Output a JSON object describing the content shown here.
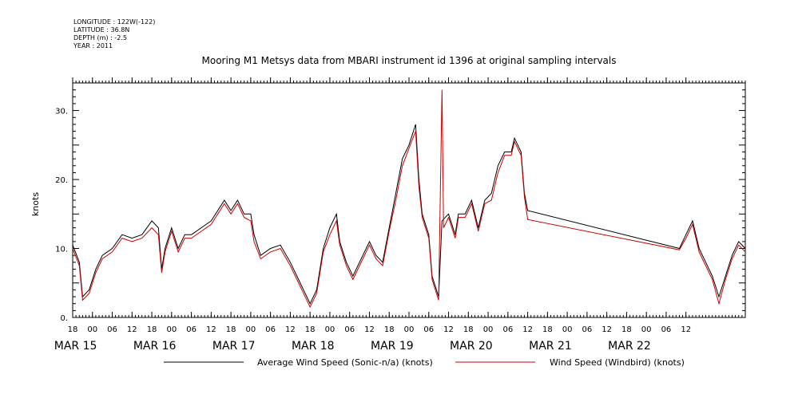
{
  "header": {
    "lines": [
      "LONGITUDE : 122W(-122)",
      "LATITUDE : 36.8N",
      "DEPTH (m) : -2.5",
      "YEAR : 2011"
    ]
  },
  "chart_data": {
    "type": "line",
    "title": "Mooring M1 Metsys data from MBARI instrument id 1396 at original sampling intervals",
    "ylabel": "knots",
    "xlabel": "",
    "ylim": [
      0,
      34
    ],
    "xlim_hours": [
      -6,
      198
    ],
    "x_unit": "hours since MAR 15 00:00, 2011",
    "yticks": [
      0,
      10,
      20,
      30
    ],
    "ytick_labels": [
      "0.",
      "10.",
      "20.",
      "30."
    ],
    "hour_ticks": [
      "18",
      "00",
      "06",
      "12",
      "18",
      "00",
      "06",
      "12",
      "18",
      "00",
      "06",
      "12",
      "18",
      "00",
      "06",
      "12",
      "18",
      "00",
      "06",
      "12",
      "18",
      "00",
      "06",
      "12",
      "18",
      "00",
      "06",
      "12",
      "18",
      "00",
      "06",
      "12"
    ],
    "day_labels": [
      "MAR 15",
      "MAR 16",
      "MAR 17",
      "MAR 18",
      "MAR 19",
      "MAR 20",
      "MAR 21",
      "MAR 22"
    ],
    "grid": false,
    "legend_position": "bottom",
    "series": [
      {
        "name": "Average Wind Speed (Sonic-n/a) (knots)",
        "color": "#000000",
        "points": [
          [
            -6,
            10.5
          ],
          [
            -4,
            8
          ],
          [
            -3,
            3
          ],
          [
            -1,
            4
          ],
          [
            1,
            7
          ],
          [
            3,
            9
          ],
          [
            6,
            10
          ],
          [
            9,
            12
          ],
          [
            12,
            11.5
          ],
          [
            15,
            12
          ],
          [
            18,
            14
          ],
          [
            20,
            13
          ],
          [
            21,
            7
          ],
          [
            22,
            10
          ],
          [
            24,
            13
          ],
          [
            26,
            10
          ],
          [
            28,
            12
          ],
          [
            30,
            12
          ],
          [
            33,
            13
          ],
          [
            36,
            14
          ],
          [
            40,
            17
          ],
          [
            42,
            15.5
          ],
          [
            44,
            17
          ],
          [
            46,
            15
          ],
          [
            48,
            15
          ],
          [
            49,
            12
          ],
          [
            51,
            9
          ],
          [
            54,
            10
          ],
          [
            57,
            10.5
          ],
          [
            60,
            8
          ],
          [
            62,
            6
          ],
          [
            64,
            4
          ],
          [
            66,
            2
          ],
          [
            68,
            4
          ],
          [
            70,
            10
          ],
          [
            72,
            13
          ],
          [
            74,
            15
          ],
          [
            75,
            11
          ],
          [
            77,
            8
          ],
          [
            79,
            6
          ],
          [
            82,
            9
          ],
          [
            84,
            11
          ],
          [
            86,
            9
          ],
          [
            88,
            8
          ],
          [
            90,
            13
          ],
          [
            92,
            18
          ],
          [
            94,
            23
          ],
          [
            96,
            25
          ],
          [
            98,
            28
          ],
          [
            99,
            20
          ],
          [
            100,
            15
          ],
          [
            102,
            12
          ],
          [
            103,
            6
          ],
          [
            105,
            3
          ],
          [
            106,
            14
          ],
          [
            108,
            15
          ],
          [
            110,
            12
          ],
          [
            111,
            15
          ],
          [
            113,
            15
          ],
          [
            115,
            17
          ],
          [
            117,
            13
          ],
          [
            119,
            17
          ],
          [
            121,
            18
          ],
          [
            123,
            22
          ],
          [
            125,
            24
          ],
          [
            127,
            24
          ],
          [
            128,
            26
          ],
          [
            130,
            24
          ],
          [
            131,
            18
          ],
          [
            132,
            15.5
          ],
          [
            178,
            10
          ],
          [
            180,
            12
          ],
          [
            182,
            14
          ],
          [
            184,
            10
          ],
          [
            186,
            8
          ],
          [
            188,
            6
          ],
          [
            190,
            3
          ],
          [
            192,
            6
          ],
          [
            194,
            9
          ],
          [
            196,
            11
          ],
          [
            198,
            10
          ]
        ]
      },
      {
        "name": "Wind Speed (Windbird) (knots)",
        "color": "#cc0000",
        "points": [
          [
            -6,
            10
          ],
          [
            -4,
            7.5
          ],
          [
            -3,
            2.5
          ],
          [
            -1,
            3.5
          ],
          [
            1,
            6.5
          ],
          [
            3,
            8.5
          ],
          [
            6,
            9.5
          ],
          [
            9,
            11.5
          ],
          [
            12,
            11
          ],
          [
            15,
            11.5
          ],
          [
            18,
            13
          ],
          [
            20,
            12
          ],
          [
            21,
            6.5
          ],
          [
            22,
            9.5
          ],
          [
            24,
            12.5
          ],
          [
            26,
            9.5
          ],
          [
            28,
            11.5
          ],
          [
            30,
            11.5
          ],
          [
            33,
            12.5
          ],
          [
            36,
            13.5
          ],
          [
            40,
            16.5
          ],
          [
            42,
            15
          ],
          [
            44,
            16.5
          ],
          [
            46,
            14.5
          ],
          [
            48,
            14
          ],
          [
            49,
            11
          ],
          [
            51,
            8.5
          ],
          [
            54,
            9.5
          ],
          [
            57,
            10
          ],
          [
            60,
            7.5
          ],
          [
            62,
            5.5
          ],
          [
            64,
            3.5
          ],
          [
            66,
            1.5
          ],
          [
            68,
            3.5
          ],
          [
            70,
            9.5
          ],
          [
            72,
            12
          ],
          [
            74,
            14
          ],
          [
            75,
            10.5
          ],
          [
            77,
            7.5
          ],
          [
            79,
            5.5
          ],
          [
            82,
            8.5
          ],
          [
            84,
            10.5
          ],
          [
            86,
            8.5
          ],
          [
            88,
            7.5
          ],
          [
            90,
            12.5
          ],
          [
            92,
            17
          ],
          [
            94,
            22
          ],
          [
            96,
            24.5
          ],
          [
            98,
            27
          ],
          [
            99,
            19
          ],
          [
            100,
            14.5
          ],
          [
            102,
            11.5
          ],
          [
            103,
            5.5
          ],
          [
            105,
            2.5
          ],
          [
            106,
            33
          ],
          [
            106.5,
            13
          ],
          [
            108,
            14.5
          ],
          [
            110,
            11.5
          ],
          [
            111,
            14.5
          ],
          [
            113,
            14.5
          ],
          [
            115,
            16.5
          ],
          [
            117,
            12.5
          ],
          [
            119,
            16.5
          ],
          [
            121,
            17
          ],
          [
            123,
            21
          ],
          [
            125,
            23.5
          ],
          [
            127,
            23.5
          ],
          [
            128,
            25.5
          ],
          [
            130,
            23.5
          ],
          [
            131,
            17.5
          ],
          [
            132,
            14.2
          ],
          [
            178,
            9.8
          ],
          [
            180,
            11.5
          ],
          [
            182,
            13.5
          ],
          [
            184,
            9.5
          ],
          [
            186,
            7.5
          ],
          [
            188,
            5.5
          ],
          [
            190,
            2
          ],
          [
            192,
            5.5
          ],
          [
            194,
            8.5
          ],
          [
            196,
            10.5
          ],
          [
            198,
            9.5
          ]
        ]
      }
    ]
  }
}
